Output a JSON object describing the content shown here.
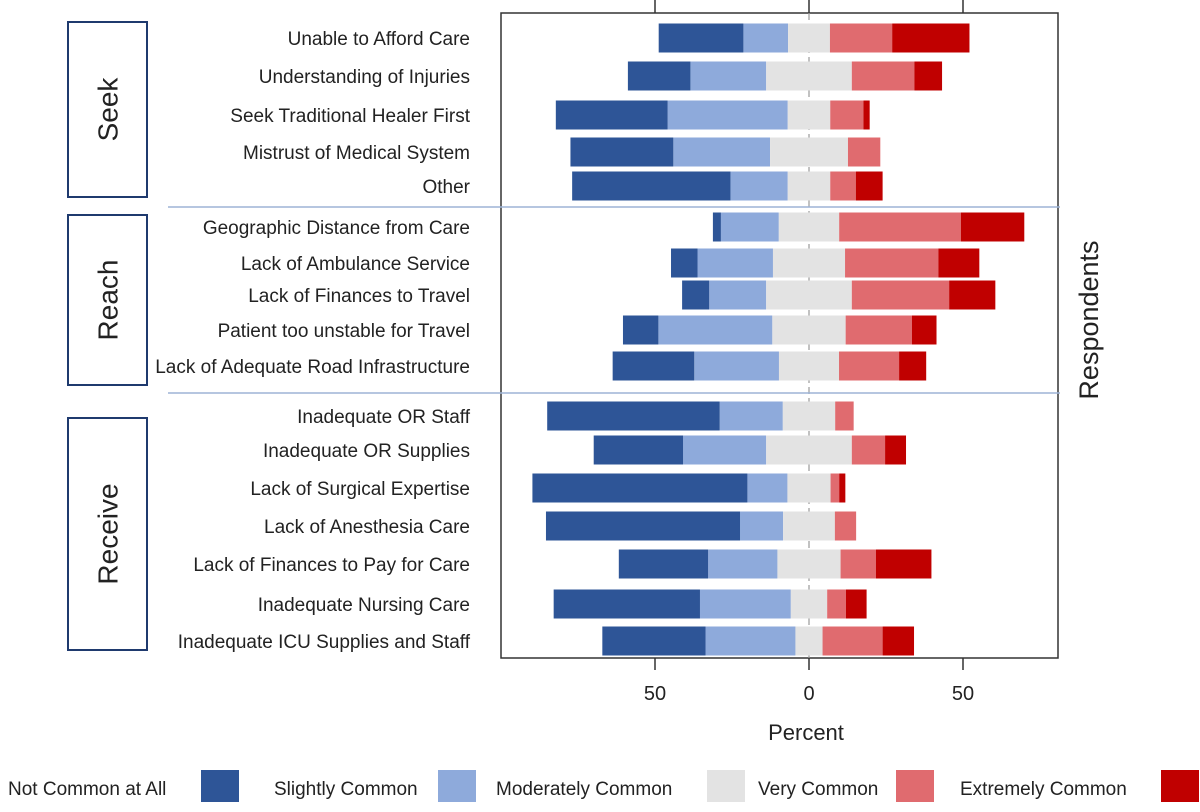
{
  "chart_data": {
    "type": "bar",
    "subtype": "diverging-stacked-horizontal",
    "xlabel": "Percent",
    "ylabel": "Respondents",
    "x_ticks": [
      "50",
      "0",
      "50"
    ],
    "tick_values": [
      -50,
      0,
      50
    ],
    "xlim": [
      -100,
      80
    ],
    "legend_position": "bottom",
    "legend": [
      {
        "label": "Not Common at All",
        "color": "#2e5597"
      },
      {
        "label": "Slightly Common",
        "color": "#8eaadb"
      },
      {
        "label": "Moderately Common",
        "color": "#e3e3e3"
      },
      {
        "label": "Very Common",
        "color": "#e06b6f"
      },
      {
        "label": "Extremely Common",
        "color": "#c00000"
      }
    ],
    "groups": [
      {
        "label": "Seek",
        "items": [
          {
            "label": "Unable to Afford Care",
            "values": [
              27.5,
              14.5,
              13.6,
              20.2,
              25.1
            ]
          },
          {
            "label": "Understanding of Injuries",
            "values": [
              20.3,
              24.6,
              27.8,
              20.3,
              9.0
            ]
          },
          {
            "label": "Seek Traditional Healer First",
            "values": [
              36.3,
              39.0,
              13.8,
              10.8,
              2.0
            ]
          },
          {
            "label": "Mistrust of Medical System",
            "values": [
              33.4,
              31.4,
              25.3,
              10.5,
              0
            ]
          },
          {
            "label": "Other",
            "values": [
              51.4,
              18.6,
              13.8,
              8.3,
              8.7
            ]
          }
        ]
      },
      {
        "label": "Reach",
        "items": [
          {
            "label": "Geographic Distance from Care",
            "values": [
              2.6,
              18.8,
              19.6,
              39.5,
              20.6
            ]
          },
          {
            "label": "Lack of Ambulance Service",
            "values": [
              8.6,
              24.5,
              23.4,
              30.3,
              13.3
            ]
          },
          {
            "label": "Lack of Finances to Travel",
            "values": [
              8.8,
              18.5,
              27.8,
              31.6,
              15.0
            ]
          },
          {
            "label": "Patient too unstable for Travel",
            "values": [
              11.5,
              37.0,
              23.8,
              21.5,
              8.0
            ]
          },
          {
            "label": "Lack of Adequate Road Infrastructure",
            "values": [
              26.5,
              27.5,
              19.5,
              19.5,
              8.8
            ]
          }
        ]
      },
      {
        "label": "Receive",
        "items": [
          {
            "label": "Inadequate OR Staff",
            "values": [
              56.0,
              20.5,
              17.0,
              6.0,
              0
            ]
          },
          {
            "label": "Inadequate OR Supplies",
            "values": [
              29.0,
              27.0,
              27.8,
              10.8,
              6.8
            ]
          },
          {
            "label": "Lack of Surgical Expertise",
            "values": [
              69.8,
              13.0,
              14.0,
              2.8,
              2.0
            ]
          },
          {
            "label": "Lack of Anesthesia Care",
            "values": [
              63.0,
              14.0,
              16.8,
              6.9,
              0
            ]
          },
          {
            "label": "Lack of Finances to Pay for Care",
            "values": [
              29.0,
              22.5,
              20.5,
              11.5,
              18.0
            ]
          },
          {
            "label": "Inadequate Nursing Care",
            "values": [
              47.5,
              29.5,
              11.8,
              6.1,
              6.7
            ]
          },
          {
            "label": "Inadequate ICU Supplies and Staff",
            "values": [
              33.5,
              29.2,
              8.8,
              19.5,
              10.2
            ]
          }
        ]
      }
    ]
  }
}
